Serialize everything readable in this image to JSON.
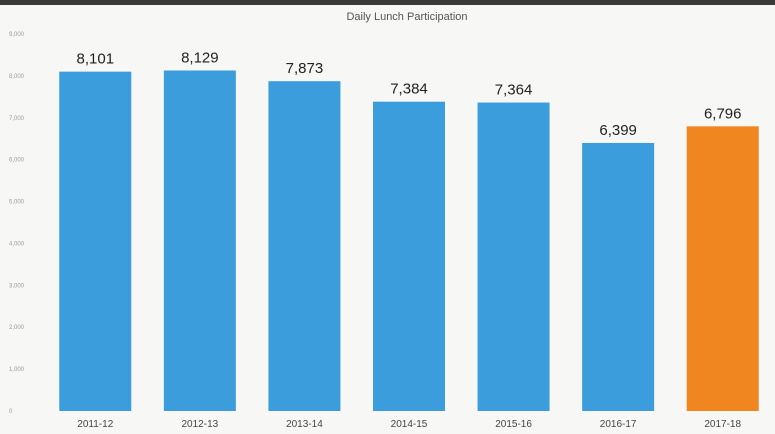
{
  "chart_data": {
    "type": "bar",
    "title": "Daily Lunch Participation",
    "categories": [
      "2011-12",
      "2012-13",
      "2013-14",
      "2014-15",
      "2015-16",
      "2016-17",
      "2017-18"
    ],
    "values": [
      8101,
      8129,
      7873,
      7384,
      7364,
      6399,
      6796
    ],
    "data_labels": [
      "8,101",
      "8,129",
      "7,873",
      "7,384",
      "7,364",
      "6,399",
      "6,796"
    ],
    "ytick_values": [
      0,
      1000,
      2000,
      3000,
      4000,
      5000,
      6000,
      7000,
      8000,
      9000
    ],
    "ytick_labels": [
      "0",
      "1,000",
      "2,000",
      "3,000",
      "4,000",
      "5,000",
      "6,000",
      "7,000",
      "8,000",
      "9,000"
    ],
    "ylim": [
      0,
      9000
    ],
    "xlabel": "",
    "ylabel": "",
    "grid": false,
    "bar_colors": [
      "#3b9ddb",
      "#3b9ddb",
      "#3b9ddb",
      "#3b9ddb",
      "#3b9ddb",
      "#3b9ddb",
      "#f0861f"
    ]
  }
}
